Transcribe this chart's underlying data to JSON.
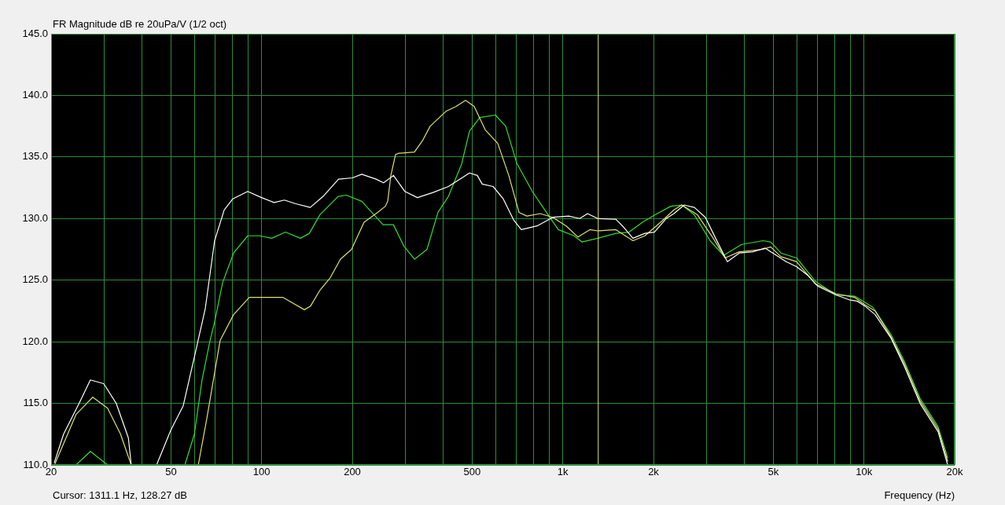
{
  "chart_data": {
    "type": "line",
    "title": "FR Magnitude dB re 20uPa/V (1/2 oct)",
    "xlabel": "Frequency (Hz)",
    "log": "x",
    "grid": true,
    "legend": false,
    "marker": "none",
    "line_style": "solid",
    "xlim": [
      20,
      20000
    ],
    "ylim": [
      110,
      145
    ],
    "xticks": [
      20,
      {
        "value": 30,
        "label": null
      },
      {
        "value": 40,
        "label": null
      },
      50,
      {
        "value": 60,
        "label": null
      },
      {
        "value": 70,
        "label": null
      },
      {
        "value": 80,
        "label": null
      },
      {
        "value": 90,
        "label": null
      },
      100,
      200,
      {
        "value": 300,
        "label": null
      },
      {
        "value": 400,
        "label": null
      },
      500,
      {
        "value": 600,
        "label": null
      },
      {
        "value": 700,
        "label": null
      },
      {
        "value": 800,
        "label": null
      },
      {
        "value": 900,
        "label": null
      },
      {
        "value": 1000,
        "label": "1k"
      },
      {
        "value": 2000,
        "label": "2k"
      },
      {
        "value": 3000,
        "label": null
      },
      {
        "value": 4000,
        "label": null
      },
      {
        "value": 5000,
        "label": "5k"
      },
      {
        "value": 6000,
        "label": null
      },
      {
        "value": 7000,
        "label": null
      },
      {
        "value": 8000,
        "label": null
      },
      {
        "value": 9000,
        "label": null
      },
      {
        "value": 10000,
        "label": "10k"
      },
      {
        "value": 20000,
        "label": "20k"
      }
    ],
    "yticks": [
      {
        "value": 110,
        "label": "110.0"
      },
      {
        "value": 115,
        "label": "115.0"
      },
      {
        "value": 120,
        "label": "120.0"
      },
      {
        "value": 125,
        "label": "125.0"
      },
      {
        "value": 130,
        "label": "130.0"
      },
      {
        "value": 135,
        "label": "135.0"
      },
      {
        "value": 140,
        "label": "140.0"
      },
      {
        "value": 145,
        "label": "145.0"
      }
    ],
    "ref_lines": [
      {
        "axis": "x",
        "value": 1311.1,
        "color": "#e8e85a"
      }
    ],
    "annotations": [
      "Cursor: 1311.1 Hz, 128.27 dB"
    ],
    "series": [
      {
        "color": "#ffffff",
        "x": [
          20.5,
          22,
          25,
          27,
          29.9,
          32.9,
          36.1,
          36.9,
          40,
          44.8,
          49.9,
          54.9,
          60.1,
          65,
          69.8,
          75.1,
          80.2,
          89.9,
          100,
          110,
          119,
          130,
          145,
          160,
          180,
          200,
          215,
          240,
          254,
          274,
          299,
          329,
          369,
          417,
          490,
          520,
          540,
          587,
          634,
          686,
          728,
          821,
          926,
          1045,
          1138,
          1208,
          1306,
          1500,
          1592,
          1710,
          1872,
          2013,
          2204,
          2338,
          2528,
          2734,
          2973,
          3216,
          3518,
          3853,
          4266,
          4700,
          5520,
          5970,
          6500,
          7030,
          8070,
          8940,
          9490,
          10070,
          10890,
          12290,
          13620,
          15350,
          17620,
          18960
        ],
        "values": [
          110.2,
          112.5,
          115.2,
          116.9,
          116.6,
          115.0,
          112.2,
          110.0,
          null,
          110.0,
          112.8,
          114.8,
          119.0,
          122.7,
          128.2,
          130.7,
          131.6,
          132.2,
          131.7,
          131.3,
          131.5,
          131.2,
          130.9,
          131.8,
          133.2,
          133.3,
          133.6,
          133.2,
          132.9,
          133.5,
          132.2,
          131.7,
          132.1,
          132.6,
          133.7,
          133.5,
          132.8,
          132.6,
          131.6,
          129.9,
          129.1,
          129.4,
          130.1,
          130.2,
          130.0,
          130.4,
          130.0,
          129.95,
          129.3,
          128.4,
          128.8,
          128.9,
          130.0,
          130.4,
          131.1,
          130.9,
          130.1,
          128.4,
          126.5,
          127.2,
          127.3,
          127.6,
          126.5,
          126.1,
          125.4,
          124.5,
          123.8,
          123.4,
          123.3,
          122.9,
          122.2,
          120.3,
          118.0,
          115.0,
          112.7,
          110.0
        ]
      },
      {
        "color": "#e0e070",
        "x": [
          20.6,
          24.2,
          27.5,
          30.8,
          34.0,
          36.9,
          45,
          61.6,
          65.8,
          72.8,
          80.7,
          91,
          104.5,
          117.8,
          129.7,
          138.6,
          145.4,
          156.3,
          169,
          182.7,
          198.8,
          218.8,
          242.6,
          257.6,
          262.2,
          268.6,
          278.4,
          285.2,
          321.6,
          341.6,
          362.8,
          409,
          442.2,
          475.4,
          507.8,
          552.6,
          608.2,
          661.6,
          715.4,
          759.6,
          841.4,
          926.4,
          1026,
          1123,
          1229,
          1306,
          1500,
          1710,
          1872,
          2112,
          2338,
          2484,
          2800,
          3158,
          3456,
          3853,
          4614,
          4900,
          5300,
          5970,
          6900,
          8070,
          9320,
          10070,
          10890,
          12290,
          13620,
          15350,
          17620,
          18960
        ],
        "values": [
          110.1,
          114.1,
          115.5,
          114.6,
          112.5,
          110.0,
          null,
          110.0,
          113.8,
          120.1,
          122.2,
          123.6,
          123.6,
          123.6,
          123.0,
          122.6,
          122.9,
          124.2,
          125.2,
          126.7,
          127.5,
          129.7,
          130.5,
          131.0,
          131.4,
          133.5,
          135.2,
          135.3,
          135.4,
          136.3,
          137.5,
          138.7,
          139.1,
          139.6,
          139.1,
          137.2,
          136.1,
          133.5,
          130.5,
          130.2,
          130.4,
          130.1,
          129.4,
          128.5,
          129.1,
          129.0,
          129.1,
          128.2,
          128.6,
          129.7,
          130.7,
          131.1,
          130.3,
          128.4,
          126.8,
          127.3,
          127.5,
          127.7,
          126.9,
          126.5,
          124.7,
          123.9,
          123.6,
          123.0,
          122.5,
          120.4,
          118.2,
          115.2,
          112.9,
          110.3
        ]
      },
      {
        "color": "#33dd33",
        "x": [
          24.2,
          27.0,
          30.8,
          40,
          55.6,
          59.8,
          63.4,
          67.4,
          69.8,
          74.2,
          80.7,
          89.9,
          98.4,
          108,
          120,
          134.5,
          144,
          156,
          179.5,
          191,
          215,
          253,
          274,
          296,
          322,
          354,
          385,
          417,
          461,
          490,
          530,
          597,
          646,
          703,
          792,
          894,
          966,
          1090,
          1157,
          1306,
          1500,
          1660,
          1838,
          2024,
          2282,
          2484,
          2734,
          3084,
          3416,
          3922,
          4614,
          4900,
          5300,
          5970,
          6900,
          8070,
          9320,
          10700,
          12290,
          13620,
          15350,
          17620,
          18960
        ],
        "values": [
          110.0,
          111.1,
          110.0,
          null,
          110.0,
          112.5,
          116.9,
          120.1,
          121.6,
          124.8,
          127.2,
          128.6,
          128.6,
          128.4,
          128.9,
          128.4,
          128.8,
          130.3,
          131.8,
          131.9,
          131.4,
          129.5,
          129.5,
          127.8,
          126.7,
          127.5,
          130.5,
          131.8,
          134.4,
          137.1,
          138.2,
          138.4,
          137.5,
          134.5,
          132.2,
          130.3,
          129.1,
          128.6,
          128.1,
          128.4,
          128.8,
          128.9,
          129.7,
          130.3,
          131.0,
          131.1,
          130.3,
          128.2,
          127.0,
          127.9,
          128.2,
          128.1,
          127.2,
          126.8,
          124.9,
          123.8,
          123.7,
          122.8,
          120.6,
          118.4,
          115.4,
          113.1,
          110.6
        ]
      }
    ]
  }
}
